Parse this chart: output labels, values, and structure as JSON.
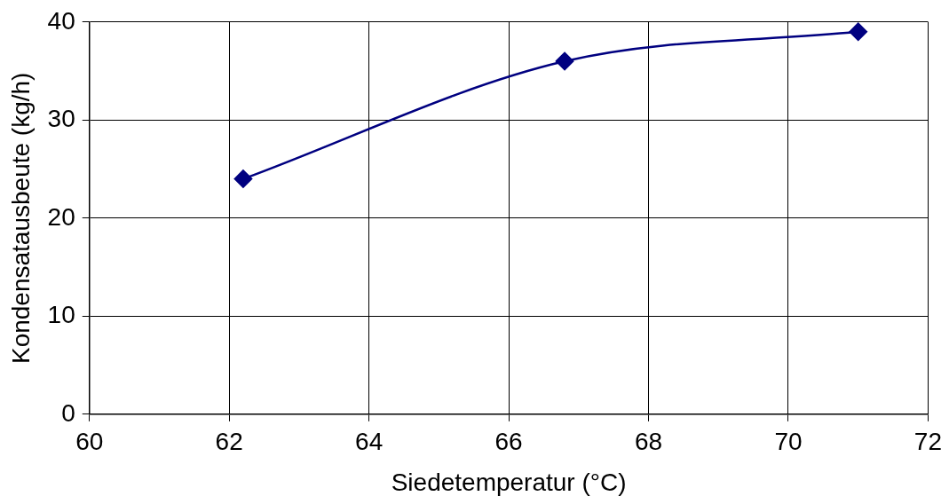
{
  "chart_data": {
    "type": "line",
    "xlabel": "Siedetemperatur (°C)",
    "ylabel": "Kondensatausbeute (kg/h)",
    "series": [
      {
        "color": "#000080",
        "x": [
          62.2,
          66.8,
          71.0
        ],
        "values": [
          24,
          36,
          39
        ]
      }
    ],
    "xlim": [
      60,
      72
    ],
    "xticks": [
      60,
      62,
      64,
      66,
      68,
      70,
      72
    ],
    "ylim": [
      0,
      40
    ],
    "yticks": [
      0,
      10,
      20,
      30,
      40
    ],
    "grid": true,
    "legend": false,
    "marker": "diamond",
    "line_style": "solid"
  }
}
